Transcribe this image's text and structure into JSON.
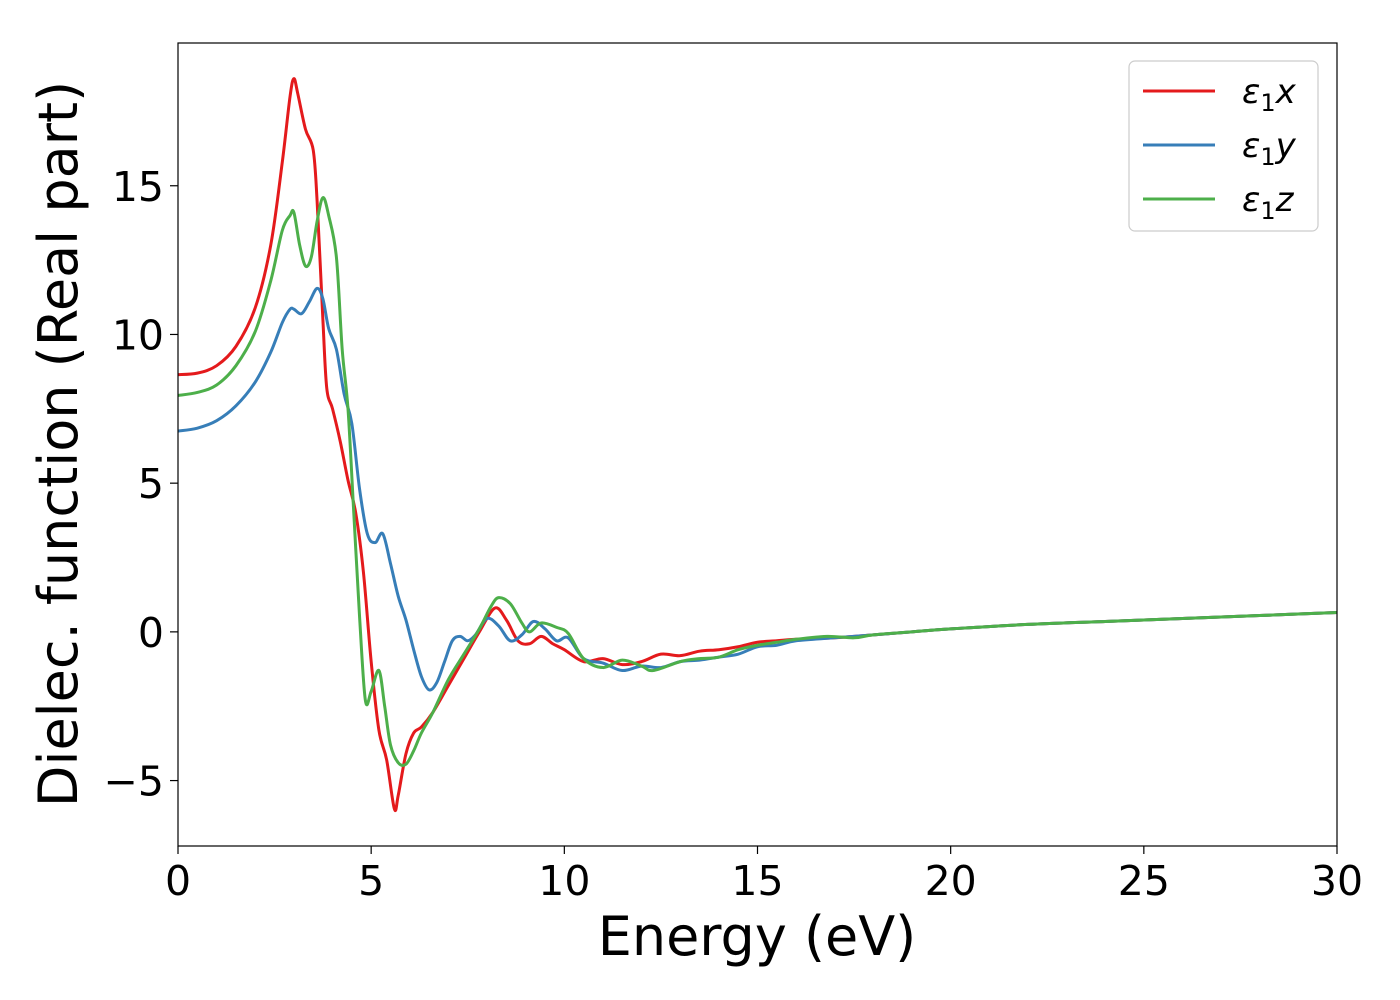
{
  "chart_data": {
    "type": "line",
    "xlabel": "Energy (eV)",
    "ylabel": "Dielec. function (Real part)",
    "xlim": [
      0,
      30
    ],
    "ylim": [
      -7.2,
      19.8
    ],
    "x_ticks": [
      0,
      5,
      10,
      15,
      20,
      25,
      30
    ],
    "x_tick_labels": [
      "0",
      "5",
      "10",
      "15",
      "20",
      "25",
      "30"
    ],
    "y_ticks": [
      -5,
      0,
      5,
      10,
      15
    ],
    "y_tick_labels": [
      "−5",
      "0",
      "5",
      "10",
      "15"
    ],
    "grid": false,
    "legend_position": "top-right",
    "series": [
      {
        "name": "ε₁x",
        "legend_base": "ε",
        "legend_sub": "1",
        "legend_tail": "x",
        "color": "#e41a1c",
        "points": [
          [
            0,
            8.65
          ],
          [
            0.5,
            8.7
          ],
          [
            1.0,
            8.95
          ],
          [
            1.5,
            9.6
          ],
          [
            2.0,
            10.9
          ],
          [
            2.4,
            13.0
          ],
          [
            2.7,
            15.8
          ],
          [
            2.9,
            18.0
          ],
          [
            3.0,
            18.6
          ],
          [
            3.1,
            18.1
          ],
          [
            3.3,
            16.9
          ],
          [
            3.5,
            16.2
          ],
          [
            3.6,
            14.5
          ],
          [
            3.75,
            10.5
          ],
          [
            3.85,
            8.2
          ],
          [
            4.0,
            7.5
          ],
          [
            4.2,
            6.4
          ],
          [
            4.4,
            5.1
          ],
          [
            4.6,
            4.0
          ],
          [
            4.8,
            2.0
          ],
          [
            5.0,
            -1.0
          ],
          [
            5.2,
            -3.3
          ],
          [
            5.4,
            -4.3
          ],
          [
            5.6,
            -5.95
          ],
          [
            5.7,
            -5.5
          ],
          [
            5.9,
            -4.1
          ],
          [
            6.1,
            -3.4
          ],
          [
            6.3,
            -3.2
          ],
          [
            6.6,
            -2.7
          ],
          [
            7.0,
            -1.8
          ],
          [
            7.4,
            -0.9
          ],
          [
            7.8,
            0.0
          ],
          [
            8.2,
            0.8
          ],
          [
            8.5,
            0.4
          ],
          [
            8.8,
            -0.3
          ],
          [
            9.1,
            -0.4
          ],
          [
            9.4,
            -0.15
          ],
          [
            9.7,
            -0.4
          ],
          [
            10.0,
            -0.6
          ],
          [
            10.5,
            -1.0
          ],
          [
            11.0,
            -0.9
          ],
          [
            11.5,
            -1.1
          ],
          [
            12.0,
            -1.0
          ],
          [
            12.5,
            -0.75
          ],
          [
            13.0,
            -0.8
          ],
          [
            13.5,
            -0.65
          ],
          [
            14.0,
            -0.6
          ],
          [
            14.5,
            -0.5
          ],
          [
            15.0,
            -0.35
          ],
          [
            15.5,
            -0.3
          ],
          [
            16.0,
            -0.25
          ],
          [
            17.0,
            -0.2
          ],
          [
            18.0,
            -0.1
          ],
          [
            19.0,
            0.0
          ],
          [
            20.0,
            0.1
          ],
          [
            22.0,
            0.25
          ],
          [
            24.0,
            0.35
          ],
          [
            26.0,
            0.45
          ],
          [
            28.0,
            0.55
          ],
          [
            30.0,
            0.65
          ]
        ]
      },
      {
        "name": "ε₁y",
        "legend_base": "ε",
        "legend_sub": "1",
        "legend_tail": "y",
        "color": "#377eb8",
        "points": [
          [
            0,
            6.75
          ],
          [
            0.5,
            6.85
          ],
          [
            1.0,
            7.1
          ],
          [
            1.5,
            7.6
          ],
          [
            2.0,
            8.4
          ],
          [
            2.4,
            9.4
          ],
          [
            2.7,
            10.4
          ],
          [
            2.9,
            10.85
          ],
          [
            3.0,
            10.85
          ],
          [
            3.2,
            10.7
          ],
          [
            3.4,
            11.1
          ],
          [
            3.6,
            11.55
          ],
          [
            3.75,
            11.2
          ],
          [
            3.9,
            10.2
          ],
          [
            4.1,
            9.5
          ],
          [
            4.3,
            8.0
          ],
          [
            4.5,
            7.0
          ],
          [
            4.7,
            4.8
          ],
          [
            4.9,
            3.3
          ],
          [
            5.1,
            3.0
          ],
          [
            5.3,
            3.3
          ],
          [
            5.5,
            2.3
          ],
          [
            5.7,
            1.2
          ],
          [
            5.9,
            0.4
          ],
          [
            6.1,
            -0.6
          ],
          [
            6.3,
            -1.5
          ],
          [
            6.5,
            -1.95
          ],
          [
            6.7,
            -1.7
          ],
          [
            6.9,
            -1.0
          ],
          [
            7.1,
            -0.3
          ],
          [
            7.3,
            -0.15
          ],
          [
            7.5,
            -0.3
          ],
          [
            7.7,
            -0.1
          ],
          [
            8.0,
            0.45
          ],
          [
            8.3,
            0.2
          ],
          [
            8.6,
            -0.3
          ],
          [
            8.9,
            -0.1
          ],
          [
            9.2,
            0.35
          ],
          [
            9.5,
            0.1
          ],
          [
            9.8,
            -0.3
          ],
          [
            10.1,
            -0.2
          ],
          [
            10.5,
            -0.9
          ],
          [
            11.0,
            -1.05
          ],
          [
            11.5,
            -1.3
          ],
          [
            12.0,
            -1.15
          ],
          [
            12.5,
            -1.2
          ],
          [
            13.0,
            -1.0
          ],
          [
            13.5,
            -0.95
          ],
          [
            14.0,
            -0.85
          ],
          [
            14.5,
            -0.75
          ],
          [
            15.0,
            -0.5
          ],
          [
            15.5,
            -0.45
          ],
          [
            16.0,
            -0.3
          ],
          [
            17.0,
            -0.2
          ],
          [
            18.0,
            -0.1
          ],
          [
            19.0,
            0.0
          ],
          [
            20.0,
            0.1
          ],
          [
            22.0,
            0.25
          ],
          [
            24.0,
            0.35
          ],
          [
            26.0,
            0.45
          ],
          [
            28.0,
            0.55
          ],
          [
            30.0,
            0.65
          ]
        ]
      },
      {
        "name": "ε₁z",
        "legend_base": "ε",
        "legend_sub": "1",
        "legend_tail": "z",
        "color": "#4daf4a",
        "points": [
          [
            0,
            7.95
          ],
          [
            0.5,
            8.05
          ],
          [
            1.0,
            8.3
          ],
          [
            1.5,
            8.95
          ],
          [
            2.0,
            10.1
          ],
          [
            2.4,
            11.8
          ],
          [
            2.7,
            13.5
          ],
          [
            2.9,
            14.0
          ],
          [
            3.0,
            14.1
          ],
          [
            3.15,
            13.0
          ],
          [
            3.3,
            12.3
          ],
          [
            3.45,
            12.6
          ],
          [
            3.6,
            13.8
          ],
          [
            3.75,
            14.6
          ],
          [
            3.9,
            14.0
          ],
          [
            4.1,
            12.6
          ],
          [
            4.25,
            9.5
          ],
          [
            4.4,
            7.5
          ],
          [
            4.55,
            4.0
          ],
          [
            4.7,
            0.5
          ],
          [
            4.85,
            -2.3
          ],
          [
            5.0,
            -2.0
          ],
          [
            5.2,
            -1.3
          ],
          [
            5.35,
            -2.5
          ],
          [
            5.5,
            -3.8
          ],
          [
            5.7,
            -4.4
          ],
          [
            5.9,
            -4.45
          ],
          [
            6.1,
            -4.0
          ],
          [
            6.3,
            -3.4
          ],
          [
            6.6,
            -2.7
          ],
          [
            7.0,
            -1.6
          ],
          [
            7.4,
            -0.75
          ],
          [
            7.8,
            0.1
          ],
          [
            8.1,
            0.85
          ],
          [
            8.3,
            1.15
          ],
          [
            8.6,
            0.95
          ],
          [
            8.9,
            0.3
          ],
          [
            9.1,
            0.0
          ],
          [
            9.4,
            0.3
          ],
          [
            9.8,
            0.15
          ],
          [
            10.1,
            -0.05
          ],
          [
            10.5,
            -0.9
          ],
          [
            11.0,
            -1.2
          ],
          [
            11.5,
            -0.95
          ],
          [
            12.0,
            -1.15
          ],
          [
            12.3,
            -1.3
          ],
          [
            13.0,
            -1.0
          ],
          [
            13.5,
            -0.9
          ],
          [
            14.0,
            -0.85
          ],
          [
            14.5,
            -0.6
          ],
          [
            15.0,
            -0.45
          ],
          [
            15.5,
            -0.35
          ],
          [
            16.0,
            -0.25
          ],
          [
            16.8,
            -0.15
          ],
          [
            17.5,
            -0.2
          ],
          [
            18.0,
            -0.1
          ],
          [
            19.0,
            0.0
          ],
          [
            20.0,
            0.1
          ],
          [
            22.0,
            0.25
          ],
          [
            24.0,
            0.35
          ],
          [
            26.0,
            0.45
          ],
          [
            28.0,
            0.55
          ],
          [
            30.0,
            0.65
          ]
        ]
      }
    ]
  }
}
